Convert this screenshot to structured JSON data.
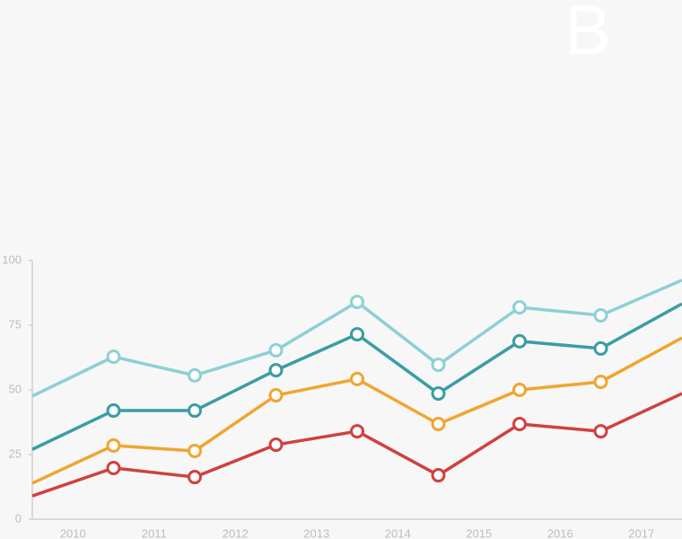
{
  "chart_data": {
    "type": "line",
    "annotation": "B",
    "x": [
      2009.5,
      2010.5,
      2011.5,
      2012.5,
      2013.5,
      2014.5,
      2015.5,
      2016.5,
      2017.5
    ],
    "series": [
      {
        "color": "#8dd0d5",
        "values": [
          47.6,
          62.8,
          55.6,
          65.3,
          84,
          59.7,
          81.9,
          78.8,
          92.4
        ]
      },
      {
        "color": "#3a9da4",
        "values": [
          27,
          42,
          42,
          57.6,
          71.5,
          48.6,
          68.8,
          66,
          83.3
        ]
      },
      {
        "color": "#f0a530",
        "values": [
          13.9,
          28.5,
          26.4,
          47.9,
          54.2,
          36.8,
          50,
          53.1,
          70.1
        ]
      },
      {
        "color": "#d0413f",
        "values": [
          9,
          19.8,
          16.3,
          28.8,
          34,
          17,
          36.8,
          34,
          48.6
        ]
      }
    ],
    "xlim": [
      2009.5,
      2017.5
    ],
    "xticks": [
      2010,
      2011,
      2012,
      2013,
      2014,
      2015,
      2016,
      2017
    ],
    "ylim": [
      0,
      100
    ],
    "yticks": [
      0,
      25,
      50,
      75,
      100
    ],
    "grid": false
  }
}
